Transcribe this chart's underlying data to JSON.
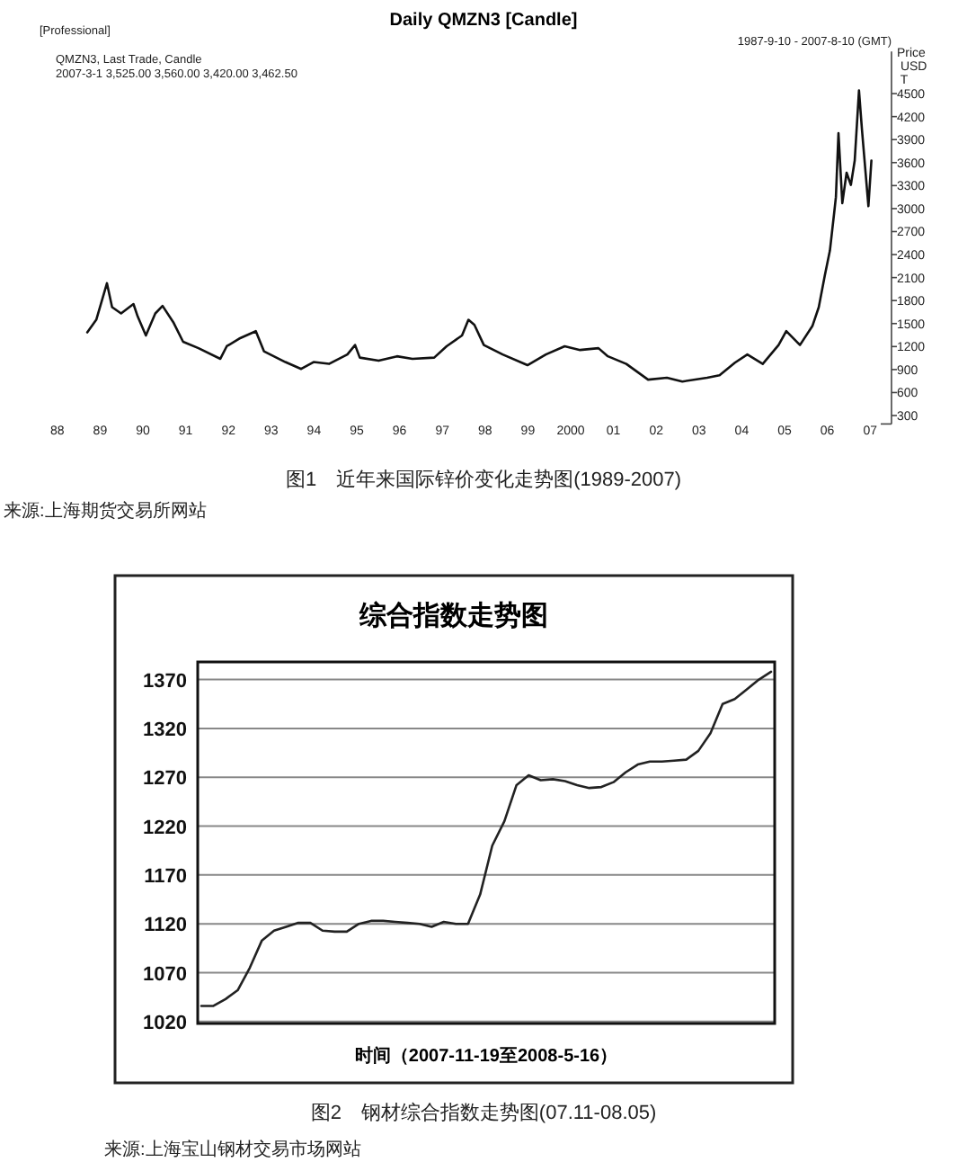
{
  "chart_data": [
    {
      "type": "line",
      "title": "Daily QMZN3 [Candle]",
      "ylabel": "Price USD T",
      "color": "#111111",
      "x": [
        1988.7,
        1988.91,
        1989.16,
        1989.28,
        1989.49,
        1989.78,
        1989.88,
        1990.07,
        1990.29,
        1990.46,
        1990.72,
        1990.94,
        1991.3,
        1991.81,
        1991.96,
        1992.25,
        1992.64,
        1992.83,
        1993.33,
        1993.7,
        1993.99,
        1994.35,
        1994.78,
        1994.96,
        1995.07,
        1995.51,
        1995.94,
        1996.3,
        1996.81,
        1997.1,
        1997.46,
        1997.61,
        1997.75,
        1997.97,
        1998.41,
        1998.99,
        1999.42,
        1999.86,
        2000.22,
        2000.65,
        2000.87,
        2001.3,
        2001.81,
        2002.25,
        2002.61,
        2003.19,
        2003.48,
        2003.84,
        2004.13,
        2004.49,
        2004.86,
        2005.04,
        2005.36,
        2005.65,
        2005.8,
        2005.94,
        2006.06,
        2006.16,
        2006.2,
        2006.26,
        2006.35,
        2006.45,
        2006.55,
        2006.64,
        2006.74,
        2006.81,
        2006.96,
        2007.03
      ],
      "values": [
        1385,
        1549,
        2026,
        1714,
        1632,
        1755,
        1590,
        1344,
        1632,
        1730,
        1508,
        1262,
        1179,
        1040,
        1204,
        1303,
        1401,
        1138,
        998,
        908,
        998,
        974,
        1097,
        1220,
        1056,
        1015,
        1073,
        1040,
        1056,
        1204,
        1344,
        1549,
        1483,
        1220,
        1097,
        957,
        1097,
        1204,
        1155,
        1179,
        1073,
        974,
        768,
        793,
        744,
        793,
        826,
        990,
        1097,
        974,
        1220,
        1401,
        1220,
        1467,
        1714,
        2125,
        2453,
        2946,
        3150,
        3984,
        3071,
        3468,
        3309,
        3627,
        4540,
        4024,
        3031,
        3627
      ],
      "xlim": [
        1988,
        2007.5
      ],
      "xticks": [
        {
          "value": 1988,
          "label": "88"
        },
        {
          "value": 1989,
          "label": "89"
        },
        {
          "value": 1990,
          "label": "90"
        },
        {
          "value": 1991,
          "label": "91"
        },
        {
          "value": 1992,
          "label": "92"
        },
        {
          "value": 1993,
          "label": "93"
        },
        {
          "value": 1994,
          "label": "94"
        },
        {
          "value": 1995,
          "label": "95"
        },
        {
          "value": 1996,
          "label": "96"
        },
        {
          "value": 1997,
          "label": "97"
        },
        {
          "value": 1998,
          "label": "98"
        },
        {
          "value": 1999,
          "label": "99"
        },
        2000,
        {
          "value": 2001,
          "label": "01"
        },
        {
          "value": 2002,
          "label": "02"
        },
        {
          "value": 2003,
          "label": "03"
        },
        {
          "value": 2004,
          "label": "04"
        },
        {
          "value": 2005,
          "label": "05"
        },
        {
          "value": 2006,
          "label": "06"
        },
        {
          "value": 2007,
          "label": "07"
        }
      ],
      "ylim": [
        190,
        5050
      ],
      "yticks": [
        300,
        600,
        900,
        1200,
        1500,
        1800,
        2100,
        2400,
        2700,
        3000,
        3300,
        3600,
        3900,
        4200,
        4500
      ],
      "annotations": [
        "[Professional]",
        "QMZN3, Last Trade, Candle",
        "2007-3-1 3,525.00 3,560.00 3,420.00 3,462.50",
        "1987-9-10 - 2007-8-10 (GMT)",
        "图1　近年来国际锌价变化走势图(1989-2007)",
        "来源:上海期货交易所网站"
      ]
    },
    {
      "type": "line",
      "title": "综合指数走势图",
      "xlabel": "时间（2007-11-19至2008-5-16）",
      "color": "#222222",
      "categories": [
        null,
        null,
        null,
        null,
        null,
        null,
        null,
        null,
        null,
        null,
        null,
        null,
        null,
        null,
        null,
        null,
        null,
        null,
        null,
        null,
        null,
        null,
        null,
        null,
        null,
        null,
        null,
        null,
        null,
        null,
        null,
        null,
        null,
        null,
        null,
        null,
        null,
        null,
        null,
        null,
        null,
        null,
        null,
        null,
        null,
        null,
        null,
        null
      ],
      "values": [
        1036,
        1036,
        1043,
        1052,
        1075,
        1103,
        1113,
        1117,
        1121,
        1121,
        1113,
        1112,
        1112,
        1120,
        1123,
        1123,
        1122,
        1121,
        1120,
        1117,
        1122,
        1120,
        1120,
        1150,
        1200,
        1225,
        1262,
        1272,
        1267,
        1268,
        1266,
        1262,
        1259,
        1260,
        1265,
        1275,
        1283,
        1286,
        1286,
        1287,
        1288,
        1297,
        1315,
        1345,
        1350,
        1360,
        1370,
        1378
      ],
      "ylim": [
        1018,
        1388
      ],
      "yticks": [
        1020,
        1070,
        1120,
        1170,
        1220,
        1270,
        1320,
        1370
      ],
      "grid": "y",
      "annotations": [
        "图2　钢材综合指数走势图(07.11-08.05)",
        "来源:上海宝山钢材交易市场网站"
      ]
    }
  ]
}
